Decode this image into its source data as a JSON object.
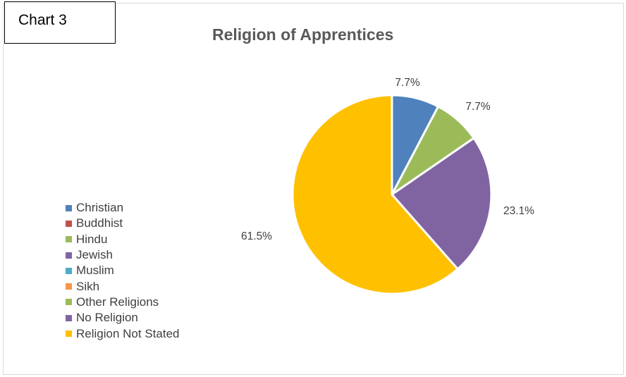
{
  "chart_label": "Chart 3",
  "colors": {
    "Christian": "#4f81bd",
    "Buddhist": "#c0504d",
    "Hindu": "#9bbb59",
    "Jewish": "#8064a2",
    "Muslim": "#4bacc6",
    "Sikh": "#f79646",
    "Other Religions": "#9bbb59",
    "No Religion": "#8064a2",
    "Religion Not Stated": "#ffc000"
  },
  "chart_data": {
    "type": "pie",
    "title": "Religion of Apprentices",
    "categories": [
      "Christian",
      "Buddhist",
      "Hindu",
      "Jewish",
      "Muslim",
      "Sikh",
      "Other Religions",
      "No Religion",
      "Religion Not Stated"
    ],
    "values": [
      7.7,
      0,
      7.7,
      0,
      0,
      0,
      0,
      23.1,
      61.5
    ],
    "data_labels": [
      "7.7%",
      "",
      "7.7%",
      "",
      "",
      "",
      "",
      "23.1%",
      "61.5%"
    ],
    "legend_position": "left"
  }
}
